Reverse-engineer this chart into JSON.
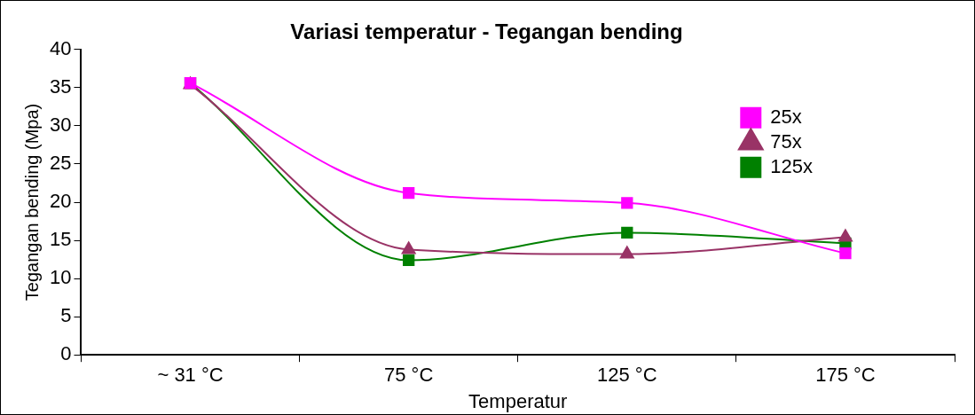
{
  "chart_data": {
    "type": "line",
    "title": "Variasi temperatur - Tegangan bending",
    "xlabel": "Temperatur",
    "ylabel": "Tegangan bending (Mpa)",
    "categories": [
      "~ 31 °C",
      "75 °C",
      "125 °C",
      "175 °C"
    ],
    "series": [
      {
        "name": "25x",
        "color": "#ff00ff",
        "marker": "square",
        "values": [
          35.6,
          21.2,
          19.9,
          13.3
        ]
      },
      {
        "name": "75x",
        "color": "#993366",
        "marker": "triangle",
        "values": [
          35.4,
          13.8,
          13.2,
          15.4
        ]
      },
      {
        "name": "125x",
        "color": "#008000",
        "marker": "square",
        "values": [
          35.6,
          12.4,
          16.0,
          14.6
        ]
      }
    ],
    "ylim": [
      0,
      40
    ],
    "yticks": [
      0,
      5,
      10,
      15,
      20,
      25,
      30,
      35,
      40
    ],
    "grid": false,
    "legend": "top right"
  }
}
